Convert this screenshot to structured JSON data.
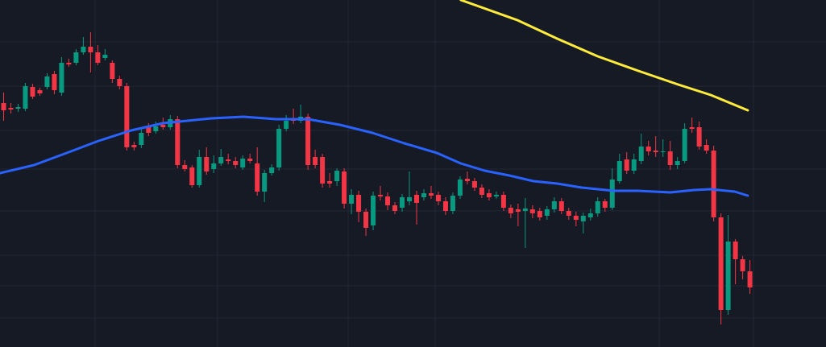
{
  "chart_data": {
    "type": "candlestick",
    "up_color": "#089981",
    "down_color": "#f23645",
    "ylim": [
      0,
      431
    ],
    "xlim": [
      -0.5,
      113.5
    ],
    "open": [
      303,
      297,
      296,
      296,
      323,
      319,
      323,
      339,
      316,
      353,
      353,
      366,
      373,
      366,
      359,
      353,
      333,
      324,
      251,
      251,
      274,
      268,
      276,
      273,
      283,
      226,
      223,
      201,
      236,
      221,
      228,
      233,
      231,
      223,
      234,
      228,
      193,
      216,
      223,
      271,
      283,
      281,
      286,
      236,
      236,
      206,
      206,
      218,
      178,
      189,
      168,
      151,
      189,
      187,
      176,
      173,
      181,
      189,
      186,
      191,
      189,
      181,
      169,
      188,
      209,
      206,
      198,
      191,
      187,
      189,
      173,
      171,
      169,
      171,
      169,
      163,
      171,
      181,
      169,
      163,
      156,
      161,
      166,
      181,
      173,
      206,
      233,
      219,
      231,
      249,
      244,
      242,
      243,
      226,
      231,
      273,
      273,
      251,
      244,
      161,
      46,
      131,
      109,
      94
    ],
    "high": [
      316,
      303,
      302,
      328,
      327,
      322,
      340,
      343,
      360,
      358,
      370,
      385,
      391,
      375,
      370,
      356,
      337,
      328,
      255,
      272,
      278,
      280,
      285,
      288,
      287,
      232,
      226,
      245,
      248,
      238,
      246,
      240,
      236,
      238,
      240,
      248,
      220,
      227,
      276,
      288,
      296,
      301,
      290,
      245,
      240,
      216,
      222,
      222,
      196,
      194,
      172,
      193,
      200,
      192,
      180,
      190,
      218,
      194,
      196,
      200,
      193,
      186,
      192,
      212,
      218,
      210,
      202,
      196,
      193,
      193,
      177,
      178,
      185,
      176,
      173,
      175,
      186,
      185,
      173,
      168,
      167,
      172,
      186,
      184,
      222,
      240,
      242,
      240,
      265,
      256,
      262,
      258,
      256,
      236,
      278,
      285,
      280,
      258,
      250,
      166,
      164,
      134,
      113,
      108
    ],
    "low": [
      281,
      290,
      292,
      293,
      308,
      312,
      320,
      314,
      312,
      348,
      350,
      363,
      341,
      350,
      356,
      328,
      320,
      244,
      244,
      247,
      262,
      265,
      270,
      270,
      222,
      218,
      198,
      198,
      214,
      216,
      225,
      227,
      222,
      220,
      228,
      188,
      180,
      213,
      219,
      268,
      277,
      278,
      220,
      222,
      198,
      198,
      200,
      172,
      165,
      155,
      138,
      145,
      182,
      170,
      165,
      168,
      176,
      152,
      182,
      184,
      176,
      164,
      165,
      184,
      202,
      194,
      185,
      182,
      184,
      169,
      160,
      150,
      123,
      160,
      157,
      158,
      167,
      165,
      158,
      150,
      141,
      157,
      162,
      168,
      170,
      203,
      215,
      215,
      227,
      238,
      236,
      236,
      220,
      221,
      228,
      266,
      245,
      240,
      156,
      28,
      40,
      78,
      84,
      66
    ],
    "close": [
      294,
      295,
      298,
      324,
      311,
      315,
      336,
      319,
      353,
      351,
      366,
      373,
      366,
      353,
      363,
      333,
      324,
      248,
      248,
      266,
      266,
      274,
      273,
      283,
      226,
      221,
      201,
      236,
      218,
      228,
      236,
      231,
      226,
      234,
      231,
      193,
      216,
      223,
      271,
      281,
      281,
      286,
      226,
      226,
      203,
      203,
      219,
      178,
      189,
      168,
      148,
      188,
      187,
      176,
      169,
      186,
      186,
      179,
      191,
      188,
      181,
      169,
      188,
      208,
      206,
      198,
      189,
      186,
      189,
      173,
      166,
      168,
      172,
      166,
      161,
      171,
      181,
      169,
      163,
      158,
      163,
      166,
      181,
      173,
      208,
      231,
      219,
      233,
      249,
      243,
      242,
      243,
      226,
      231,
      271,
      271,
      249,
      244,
      161,
      46,
      131,
      109,
      94,
      74
    ],
    "lines": [
      {
        "color": "#2962ff",
        "x": [
          -0.5,
          4.2,
          8.7,
          13.1,
          17.6,
          22,
          25.3,
          28.7,
          33.1,
          37.6,
          42,
          46.4,
          50.9,
          55.3,
          59.8,
          63.1,
          66.4,
          69.8,
          73.1,
          76.4,
          79.8,
          84.2,
          87.6,
          92,
          95.3,
          97.6,
          100.9,
          102.7
        ],
        "values": [
          216,
          226,
          241,
          256,
          269,
          278,
          281,
          284,
          286,
          283,
          283,
          276,
          266,
          253,
          241,
          228,
          219,
          213,
          206,
          203,
          198,
          194,
          194,
          192,
          195,
          196,
          193,
          188
        ]
      },
      {
        "color": "#ffeb3b",
        "x": [
          63.1,
          65.3,
          70.9,
          76.4,
          82,
          87.6,
          93.1,
          97.6,
          102.7
        ],
        "values": [
          431,
          424,
          406,
          383,
          361,
          343,
          326,
          313,
          294
        ]
      }
    ]
  }
}
